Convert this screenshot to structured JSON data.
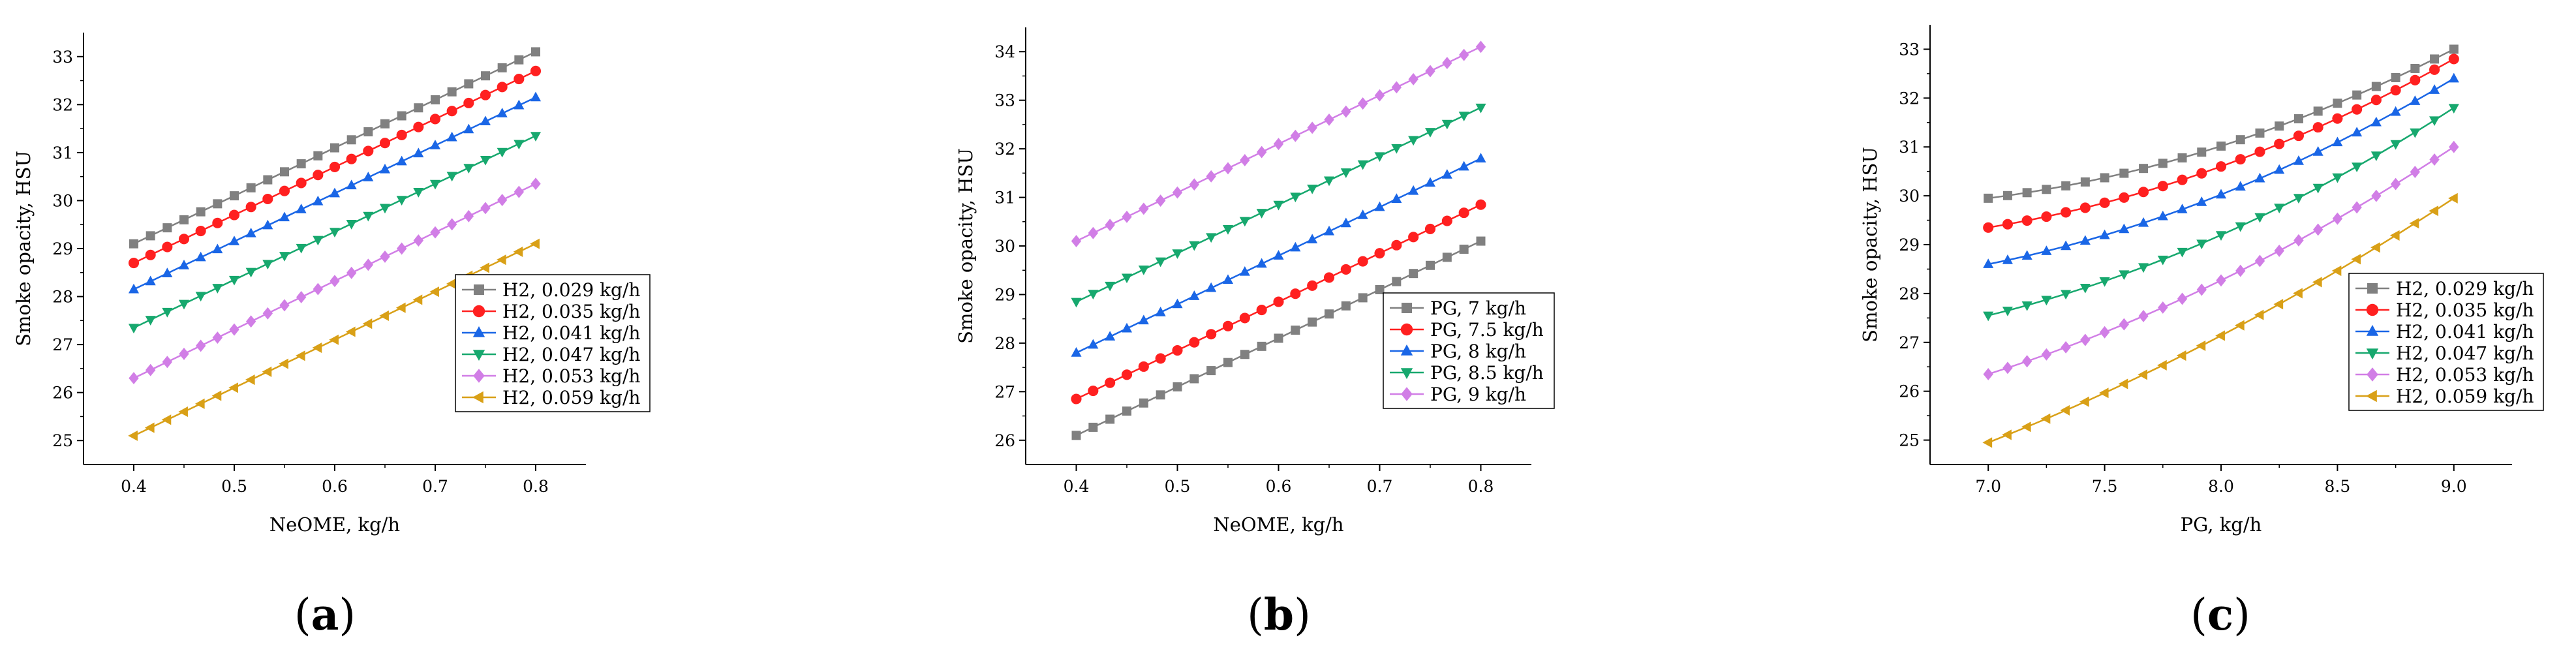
{
  "chart_data": [
    {
      "type": "line",
      "panel_label": "a",
      "xlabel": "NeOME, kg/h",
      "ylabel": "Smoke opacity, HSU",
      "xlim": [
        0.35,
        0.85
      ],
      "ylim": [
        24.5,
        33.5
      ],
      "xticks": [
        0.4,
        0.5,
        0.6,
        0.7,
        0.8
      ],
      "yticks": [
        25,
        26,
        27,
        28,
        29,
        30,
        31,
        32,
        33
      ],
      "tick_decimals": 1,
      "legend_position": "bottom-right",
      "x": {
        "start": 0.4,
        "end": 0.8,
        "count": 25
      },
      "series": [
        {
          "name": "H2, 0.029 kg/h",
          "color": "#808080",
          "marker": "square",
          "start": 29.1,
          "end": 33.1,
          "curve": 0.0
        },
        {
          "name": "H2, 0.035 kg/h",
          "color": "#ff2020",
          "marker": "circle",
          "start": 28.7,
          "end": 32.7,
          "curve": 0.0
        },
        {
          "name": "H2, 0.041 kg/h",
          "color": "#1a66e6",
          "marker": "triangle-up",
          "start": 28.15,
          "end": 32.15,
          "curve": 0.0
        },
        {
          "name": "H2, 0.047 kg/h",
          "color": "#17a86e",
          "marker": "triangle-down",
          "start": 27.35,
          "end": 31.35,
          "curve": 0.0
        },
        {
          "name": "H2, 0.053 kg/h",
          "color": "#d17ee6",
          "marker": "diamond",
          "start": 26.3,
          "end": 30.35,
          "curve": 0.0
        },
        {
          "name": "H2, 0.059 kg/h",
          "color": "#d9a017",
          "marker": "triangle-left",
          "start": 25.1,
          "end": 29.1,
          "curve": 0.0
        }
      ]
    },
    {
      "type": "line",
      "panel_label": "b",
      "xlabel": "NeOME, kg/h",
      "ylabel": "Smoke opacity, HSU",
      "xlim": [
        0.35,
        0.85
      ],
      "ylim": [
        25.5,
        34.5
      ],
      "xticks": [
        0.4,
        0.5,
        0.6,
        0.7,
        0.8
      ],
      "yticks": [
        26,
        27,
        28,
        29,
        30,
        31,
        32,
        33,
        34
      ],
      "tick_decimals": 1,
      "legend_position": "bottom-right",
      "x": {
        "start": 0.4,
        "end": 0.8,
        "count": 25
      },
      "series": [
        {
          "name": "PG, 7 kg/h",
          "color": "#808080",
          "marker": "square",
          "start": 26.1,
          "end": 30.1,
          "curve": 0.0
        },
        {
          "name": "PG, 7.5 kg/h",
          "color": "#ff2020",
          "marker": "circle",
          "start": 26.85,
          "end": 30.85,
          "curve": 0.0
        },
        {
          "name": "PG, 8 kg/h",
          "color": "#1a66e6",
          "marker": "triangle-up",
          "start": 27.8,
          "end": 31.8,
          "curve": 0.0
        },
        {
          "name": "PG, 8.5 kg/h",
          "color": "#17a86e",
          "marker": "triangle-down",
          "start": 28.85,
          "end": 32.85,
          "curve": 0.0
        },
        {
          "name": "PG, 9 kg/h",
          "color": "#d17ee6",
          "marker": "diamond",
          "start": 30.1,
          "end": 34.1,
          "curve": 0.0
        }
      ]
    },
    {
      "type": "line",
      "panel_label": "c",
      "xlabel": "PG, kg/h",
      "ylabel": "Smoke opacity, HSU",
      "xlim": [
        6.75,
        9.25
      ],
      "ylim": [
        24.5,
        33.5
      ],
      "xticks": [
        7.0,
        7.5,
        8.0,
        8.5,
        9.0
      ],
      "yticks": [
        25,
        26,
        27,
        28,
        29,
        30,
        31,
        32,
        33
      ],
      "tick_decimals": 1,
      "legend_position": "bottom-right",
      "x": {
        "start": 7.0,
        "end": 9.0,
        "count": 25
      },
      "series": [
        {
          "name": "H2, 0.029 kg/h",
          "color": "#808080",
          "marker": "square",
          "start": 29.95,
          "end": 33.0,
          "curve": 0.6
        },
        {
          "name": "H2, 0.035 kg/h",
          "color": "#ff2020",
          "marker": "circle",
          "start": 29.35,
          "end": 32.8,
          "curve": 0.55
        },
        {
          "name": "H2, 0.041 kg/h",
          "color": "#1a66e6",
          "marker": "triangle-up",
          "start": 28.6,
          "end": 32.4,
          "curve": 0.5
        },
        {
          "name": "H2, 0.047 kg/h",
          "color": "#17a86e",
          "marker": "triangle-down",
          "start": 27.55,
          "end": 31.8,
          "curve": 0.45
        },
        {
          "name": "H2, 0.053 kg/h",
          "color": "#d17ee6",
          "marker": "diamond",
          "start": 26.35,
          "end": 31.0,
          "curve": 0.35
        },
        {
          "name": "H2, 0.059 kg/h",
          "color": "#d9a017",
          "marker": "triangle-left",
          "start": 24.95,
          "end": 29.95,
          "curve": 0.25
        }
      ]
    }
  ]
}
